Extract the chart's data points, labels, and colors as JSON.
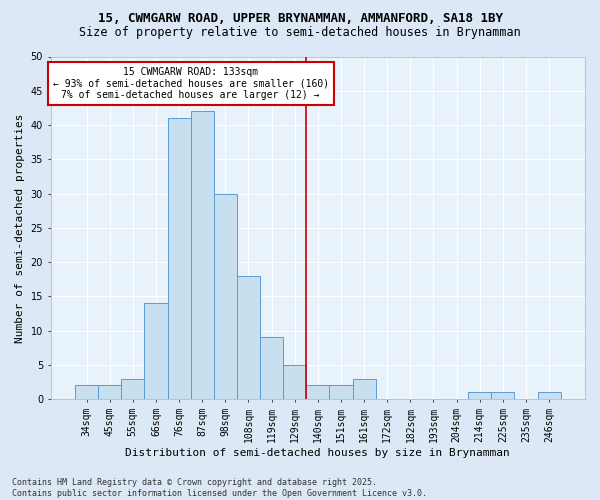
{
  "title": "15, CWMGARW ROAD, UPPER BRYNAMMAN, AMMANFORD, SA18 1BY",
  "subtitle": "Size of property relative to semi-detached houses in Brynamman",
  "xlabel": "Distribution of semi-detached houses by size in Brynamman",
  "ylabel": "Number of semi-detached properties",
  "bar_color": "#c8dff0",
  "bar_edge_color": "#5b9bd5",
  "categories": [
    "34sqm",
    "45sqm",
    "55sqm",
    "66sqm",
    "76sqm",
    "87sqm",
    "98sqm",
    "108sqm",
    "119sqm",
    "129sqm",
    "140sqm",
    "151sqm",
    "161sqm",
    "172sqm",
    "182sqm",
    "193sqm",
    "204sqm",
    "214sqm",
    "225sqm",
    "235sqm",
    "246sqm"
  ],
  "values": [
    2,
    2,
    3,
    14,
    41,
    42,
    30,
    18,
    9,
    5,
    2,
    2,
    3,
    0,
    0,
    0,
    0,
    1,
    1,
    0,
    1
  ],
  "ylim": [
    0,
    50
  ],
  "yticks": [
    0,
    5,
    10,
    15,
    20,
    25,
    30,
    35,
    40,
    45,
    50
  ],
  "property_line_x": 9.5,
  "annotation_title": "15 CWMGARW ROAD: 133sqm",
  "annotation_line1": "← 93% of semi-detached houses are smaller (160)",
  "annotation_line2": "7% of semi-detached houses are larger (12) →",
  "annotation_box_color": "#cc0000",
  "footer": "Contains HM Land Registry data © Crown copyright and database right 2025.\nContains public sector information licensed under the Open Government Licence v3.0.",
  "bg_color": "#dce8f5",
  "plot_bg_color": "#e8f2fb",
  "grid_color": "#ffffff",
  "title_fontsize": 9,
  "subtitle_fontsize": 8.5,
  "axis_label_fontsize": 8,
  "tick_fontsize": 7,
  "annotation_fontsize": 7,
  "footer_fontsize": 6
}
